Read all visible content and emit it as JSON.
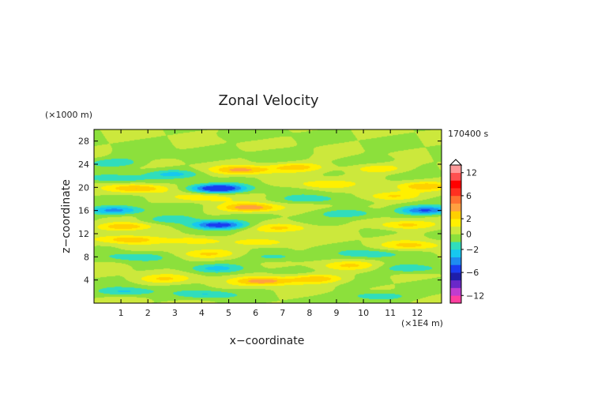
{
  "chart_data": {
    "type": "heatmap",
    "title": "Zonal Velocity",
    "xlabel": "x−coordinate",
    "ylabel": "z−coordinate",
    "x_unit": "(×1E4 m)",
    "y_unit": "(×1000 m)",
    "time_label": "170400 s",
    "xlim": [
      0,
      12.9
    ],
    "ylim": [
      0,
      30
    ],
    "x_ticks": [
      "1",
      "2",
      "3",
      "4",
      "5",
      "6",
      "7",
      "8",
      "9",
      "10",
      "11",
      "12"
    ],
    "y_ticks": [
      "4",
      "8",
      "12",
      "16",
      "20",
      "24",
      "28"
    ],
    "colorbar": {
      "levels": [
        -14,
        -12,
        -10,
        -8,
        -6,
        -4,
        -3,
        -2,
        -1,
        0,
        1,
        2,
        3,
        4,
        6,
        8,
        10,
        12,
        14
      ],
      "colors": [
        "#ff3ea0",
        "#c03cd0",
        "#6a28c8",
        "#1e1eaa",
        "#1a3cf0",
        "#1e8cf0",
        "#16c8f0",
        "#30ddbc",
        "#8ce03c",
        "#cce83c",
        "#fff000",
        "#ffd000",
        "#ffa040",
        "#ff7030",
        "#ff3020",
        "#ff0000",
        "#ff5050",
        "#ff9a9a"
      ],
      "tick_labels": [
        "12",
        "6",
        "2",
        "0",
        "−2",
        "−6",
        "−12"
      ],
      "tick_values": [
        12,
        6,
        2,
        0,
        -2,
        -6,
        -12
      ]
    },
    "features": [
      {
        "x": 6.3,
        "z": 3.8,
        "value": 3.5
      },
      {
        "x": 8.2,
        "z": 4.2,
        "value": 2.8
      },
      {
        "x": 2.6,
        "z": 4.2,
        "value": 1.8
      },
      {
        "x": 1.2,
        "z": 2.0,
        "value": -2.2
      },
      {
        "x": 4.2,
        "z": 1.5,
        "value": -2.0
      },
      {
        "x": 10.5,
        "z": 1.2,
        "value": -2.2
      },
      {
        "x": 4.5,
        "z": 6.0,
        "value": -2.0
      },
      {
        "x": 9.5,
        "z": 6.5,
        "value": 1.8
      },
      {
        "x": 11.8,
        "z": 6.0,
        "value": -2.2
      },
      {
        "x": 1.5,
        "z": 8.0,
        "value": -1.8
      },
      {
        "x": 4.2,
        "z": 8.5,
        "value": 1.8
      },
      {
        "x": 6.8,
        "z": 8.0,
        "value": -1.6
      },
      {
        "x": 10.2,
        "z": 8.5,
        "value": -1.8
      },
      {
        "x": 1.3,
        "z": 11.0,
        "value": 2.8
      },
      {
        "x": 3.8,
        "z": 10.8,
        "value": 2.0
      },
      {
        "x": 6.3,
        "z": 10.5,
        "value": 2.0
      },
      {
        "x": 11.8,
        "z": 10.0,
        "value": 2.2
      },
      {
        "x": 4.6,
        "z": 13.5,
        "value": -5.0
      },
      {
        "x": 1.2,
        "z": 13.2,
        "value": 3.0
      },
      {
        "x": 7.0,
        "z": 13.0,
        "value": 2.0
      },
      {
        "x": 11.5,
        "z": 13.5,
        "value": 2.5
      },
      {
        "x": 3.0,
        "z": 14.5,
        "value": -2.0
      },
      {
        "x": 0.8,
        "z": 16.0,
        "value": -3.5
      },
      {
        "x": 5.8,
        "z": 16.5,
        "value": 4.0
      },
      {
        "x": 9.5,
        "z": 15.5,
        "value": -2.0
      },
      {
        "x": 12.3,
        "z": 16.0,
        "value": -4.0
      },
      {
        "x": 4.0,
        "z": 18.2,
        "value": 1.8
      },
      {
        "x": 8.0,
        "z": 18.0,
        "value": -2.0
      },
      {
        "x": 11.0,
        "z": 18.5,
        "value": 2.2
      },
      {
        "x": 1.6,
        "z": 19.8,
        "value": 3.0
      },
      {
        "x": 4.6,
        "z": 19.8,
        "value": -5.5
      },
      {
        "x": 8.5,
        "z": 20.5,
        "value": 2.0
      },
      {
        "x": 12.3,
        "z": 20.2,
        "value": 2.5
      },
      {
        "x": 0.8,
        "z": 21.5,
        "value": -2.0
      },
      {
        "x": 3.0,
        "z": 22.3,
        "value": -2.0
      },
      {
        "x": 5.5,
        "z": 23.0,
        "value": 3.2
      },
      {
        "x": 7.5,
        "z": 23.5,
        "value": 2.5
      },
      {
        "x": 10.5,
        "z": 23.2,
        "value": 1.8
      },
      {
        "x": 0.8,
        "z": 24.3,
        "value": -1.8
      },
      {
        "x": 2.0,
        "z": 25.5,
        "value": -0.8
      },
      {
        "x": 7.0,
        "z": 26.0,
        "value": -0.7
      },
      {
        "x": 10.5,
        "z": 24.8,
        "value": -0.7
      },
      {
        "x": 5.5,
        "z": 29.0,
        "value": -0.6
      }
    ],
    "grid": false,
    "colorbar_placement": "right"
  }
}
